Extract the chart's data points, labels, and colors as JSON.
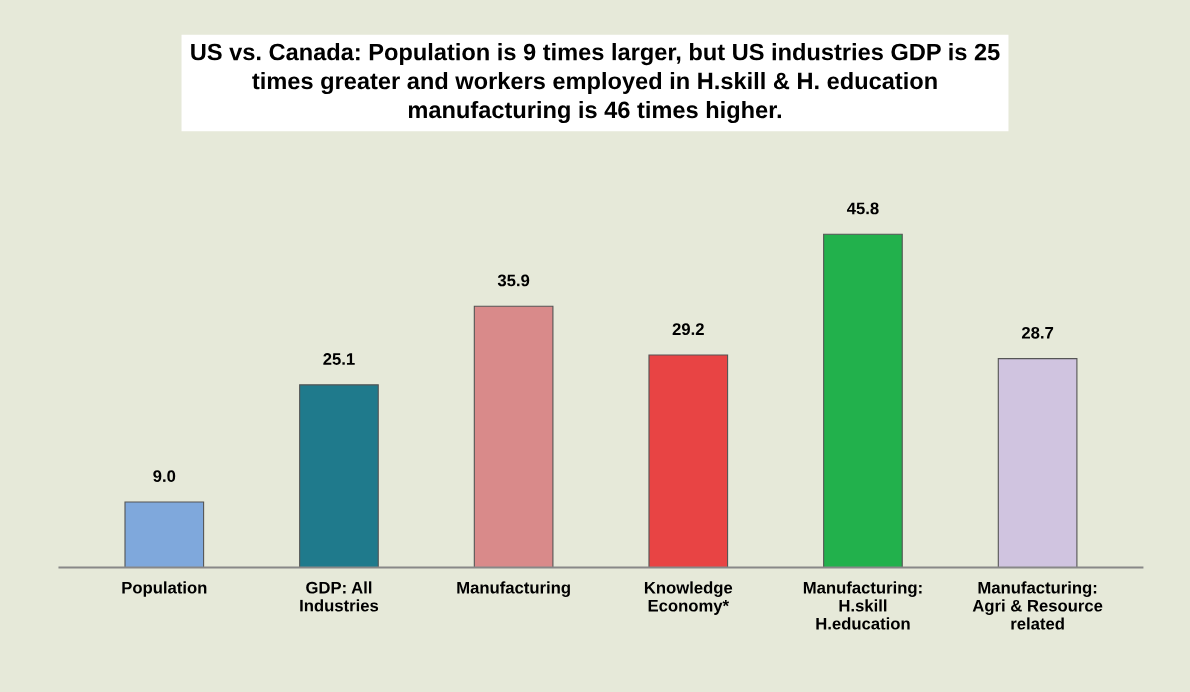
{
  "chart_data": {
    "type": "bar",
    "title": "US vs. Canada: Population is 9 times larger, but US industries GDP is 25\ntimes greater and workers employed in H.skill & H. education\nmanufacturing is 46 times higher.",
    "categories": [
      "Population",
      "GDP: All\nIndustries",
      "Manufacturing",
      "Knowledge\nEconomy*",
      "Manufacturing:\nH.skill\nH.education",
      "Manufacturing:\nAgri & Resource\nrelated"
    ],
    "values": [
      9.0,
      25.1,
      35.9,
      29.2,
      45.8,
      28.7
    ],
    "colors": [
      "#7fa8dc",
      "#1f7a8c",
      "#d98a8a",
      "#e84444",
      "#22b14c",
      "#d0c4e0"
    ],
    "value_labels": [
      "9.0",
      "25.1",
      "35.9",
      "29.2",
      "45.8",
      "28.7"
    ],
    "grid": false,
    "legend": false
  }
}
